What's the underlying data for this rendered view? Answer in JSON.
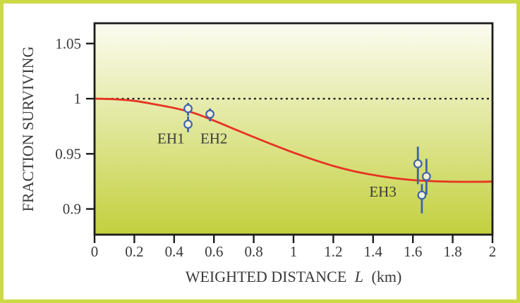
{
  "figure": {
    "border_color": "#ccd944",
    "page_background": "#ffffff"
  },
  "chart_data": {
    "type": "line",
    "title": "",
    "xlabel_prefix": "WEIGHTED DISTANCE",
    "xlabel_variable": "L",
    "xlabel_unit": "(km)",
    "xlabel_full": "WEIGHTED DISTANCE L (km)",
    "ylabel": "FRACTION SURVIVING",
    "xlim": [
      0,
      2
    ],
    "ylim": [
      0.8767,
      1.0684
    ],
    "grid": false,
    "legend": false,
    "x_ticks": {
      "values": [
        0,
        0.2,
        0.4,
        0.6,
        0.8,
        1,
        1.2,
        1.4,
        1.6,
        1.8,
        2
      ],
      "labels": [
        "0",
        "0.2",
        "0.4",
        "0.6",
        "0.8",
        "1",
        "1.2",
        "1.4",
        "1.6",
        "1.8",
        "2"
      ]
    },
    "y_ticks": {
      "values": [
        0.9,
        0.95,
        1,
        1.05
      ],
      "labels": [
        "0.9",
        "0.95",
        "1",
        "1.05"
      ]
    },
    "plot_background_gradient": {
      "top": "#fcfcf1",
      "bottom": "#c3d03d"
    },
    "frame_color": "#1c1c1c",
    "reference_line": {
      "y": 1,
      "color": "#252525",
      "style": "dotted"
    },
    "model_curve": {
      "name": "model-fit-curve",
      "color": "#e73323",
      "points": [
        [
          0,
          1.0
        ],
        [
          0.1,
          0.9995
        ],
        [
          0.2,
          0.998
        ],
        [
          0.3,
          0.995
        ],
        [
          0.4,
          0.9915
        ],
        [
          0.5,
          0.987
        ],
        [
          0.6,
          0.9801
        ],
        [
          0.7,
          0.9726
        ],
        [
          0.8,
          0.9652
        ],
        [
          0.9,
          0.958
        ],
        [
          1.0,
          0.9511
        ],
        [
          1.1,
          0.9447
        ],
        [
          1.2,
          0.939
        ],
        [
          1.3,
          0.9344
        ],
        [
          1.4,
          0.9308
        ],
        [
          1.5,
          0.9281
        ],
        [
          1.6,
          0.9262
        ],
        [
          1.7,
          0.9252
        ],
        [
          1.8,
          0.9247
        ],
        [
          1.9,
          0.9246
        ],
        [
          2.0,
          0.9248
        ]
      ]
    },
    "series": [
      {
        "label": "EH1",
        "marker_color": "#3f63ab",
        "marker_fill": "#f1f1d6",
        "label_pos": {
          "x": 0.384,
          "y": 0.9643
        },
        "points": [
          {
            "x": 0.47,
            "y": 0.991,
            "err_lo": 0.9845,
            "err_hi": 0.9962
          },
          {
            "x": 0.47,
            "y": 0.9768,
            "err_lo": 0.9697,
            "err_hi": 0.9838
          }
        ]
      },
      {
        "label": "EH2",
        "marker_color": "#3f63ab",
        "marker_fill": "#f1f1d6",
        "label_pos": {
          "x": 0.6,
          "y": 0.9643
        },
        "points": [
          {
            "x": 0.58,
            "y": 0.986,
            "err_lo": 0.9795,
            "err_hi": 0.9912
          }
        ]
      },
      {
        "label": "EH3",
        "marker_color": "#3f63ab",
        "marker_fill": "#f1f1d6",
        "label_pos": {
          "x": 1.449,
          "y": 0.9159
        },
        "points": [
          {
            "x": 1.625,
            "y": 0.941,
            "err_lo": 0.9225,
            "err_hi": 0.9565
          },
          {
            "x": 1.668,
            "y": 0.9295,
            "err_lo": 0.913,
            "err_hi": 0.9455
          },
          {
            "x": 1.645,
            "y": 0.9125,
            "err_lo": 0.896,
            "err_hi": 0.9225
          }
        ]
      }
    ]
  }
}
